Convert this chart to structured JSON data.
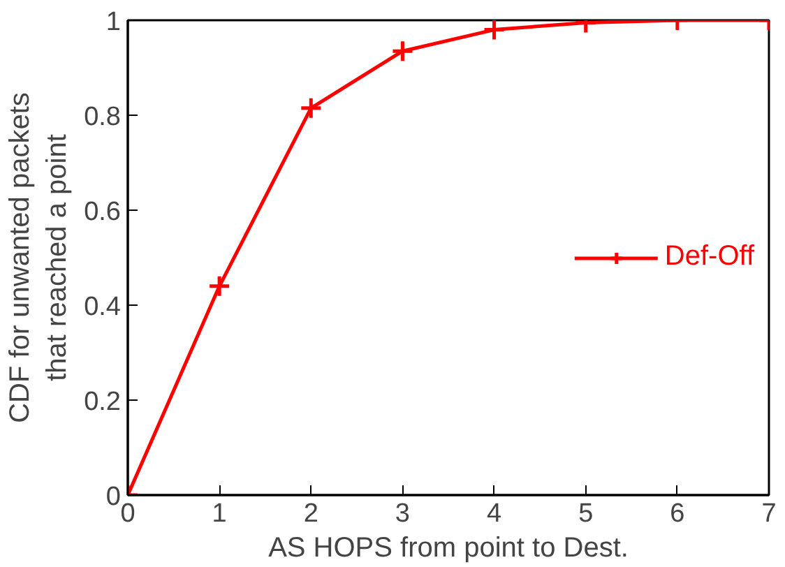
{
  "chart_data": {
    "type": "line",
    "xlabel": "AS HOPS from point to Dest.",
    "ylabel": "CDF for unwanted packets\nthat reached a point",
    "x": [
      0,
      1,
      2,
      3,
      4,
      5,
      6,
      7
    ],
    "series": [
      {
        "name": "Def-Off",
        "color": "#ff0000",
        "values": [
          0,
          0.44,
          0.815,
          0.935,
          0.98,
          0.995,
          1.0,
          1.0
        ]
      }
    ],
    "xlim": [
      0,
      7
    ],
    "ylim": [
      0,
      1
    ],
    "xticks": [
      0,
      1,
      2,
      3,
      4,
      5,
      6,
      7
    ],
    "yticks": [
      0,
      0.2,
      0.4,
      0.6,
      0.8,
      1
    ],
    "marker": "cross",
    "line_style": "solid",
    "grid": false,
    "legend": "right"
  }
}
